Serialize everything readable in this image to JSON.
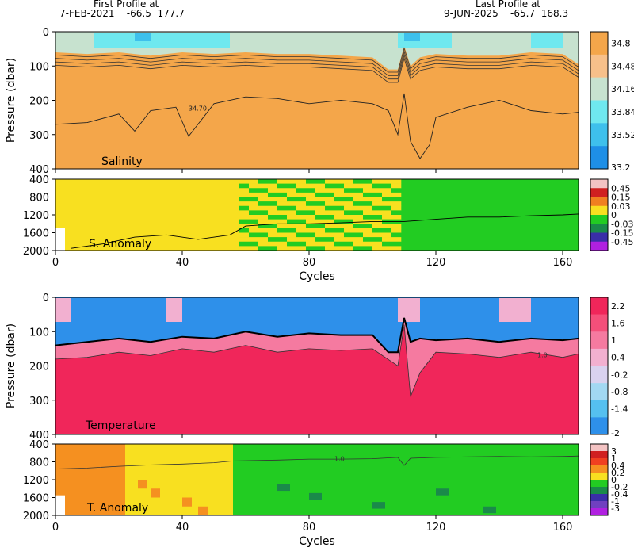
{
  "header": {
    "first_line1": "First Profile at",
    "first_line2": "7-FEB-2021    -66.5  177.7",
    "last_line1": "Last Profile at",
    "last_line2": "9-JUN-2025    -65.7  168.3"
  },
  "chart_data": [
    {
      "type": "heatmap",
      "id": "salinity",
      "title": "Salinity",
      "ylabel": "Pressure (dbar)",
      "xlabel": "",
      "xlim": [
        0,
        165
      ],
      "ylim": [
        400,
        0
      ],
      "xticks": [
        0,
        40,
        80,
        120,
        160
      ],
      "yticks": [
        0,
        100,
        200,
        300,
        400
      ],
      "colorbar": {
        "labels": [
          "34.8",
          "34.48",
          "34.16",
          "33.84",
          "33.52",
          "33.2"
        ],
        "colors": [
          "#f4a64a",
          "#f7c08a",
          "#c7e2cf",
          "#6fe8ef",
          "#3ec0ec",
          "#1e8fe6"
        ]
      },
      "contour_label": "34.70",
      "contour_34_70": {
        "x": [
          0,
          10,
          20,
          25,
          30,
          38,
          42,
          50,
          60,
          70,
          80,
          90,
          100,
          105,
          108,
          110,
          112,
          115,
          118,
          120,
          130,
          140,
          150,
          160,
          165
        ],
        "y": [
          270,
          265,
          240,
          290,
          230,
          220,
          305,
          210,
          190,
          195,
          210,
          200,
          210,
          230,
          300,
          180,
          320,
          370,
          330,
          250,
          220,
          200,
          230,
          240,
          235
        ]
      }
    },
    {
      "type": "heatmap",
      "id": "salinity_anomaly",
      "title": "S. Anomaly",
      "ylabel": "",
      "xlabel": "Cycles",
      "xlim": [
        0,
        165
      ],
      "ylim": [
        2000,
        400
      ],
      "xticks": [
        0,
        40,
        80,
        120,
        160
      ],
      "yticks": [
        400,
        800,
        1200,
        1600,
        2000
      ],
      "colorbar": {
        "labels": [
          "0.45",
          "0.15",
          "0.03",
          "0",
          "-0.03",
          "-0.15",
          "-0.45"
        ],
        "colors": [
          "#f3c3c3",
          "#d02020",
          "#f08020",
          "#f8e020",
          "#22cc22",
          "#1a8a4a",
          "#3a2ea8",
          "#b020e0"
        ]
      },
      "regions": [
        {
          "x0": 0,
          "x1": 58,
          "value": "0.03"
        },
        {
          "x0": 58,
          "x1": 108,
          "value": "mixed"
        },
        {
          "x0": 108,
          "x1": 165,
          "value": "0"
        }
      ],
      "contour": {
        "x": [
          5,
          15,
          25,
          35,
          45,
          55,
          60,
          70,
          80,
          90,
          100,
          110,
          120,
          130,
          140,
          150,
          160,
          165
        ],
        "y": [
          1950,
          1850,
          1700,
          1650,
          1750,
          1650,
          1450,
          1400,
          1400,
          1380,
          1350,
          1350,
          1300,
          1250,
          1250,
          1220,
          1200,
          1180
        ]
      }
    },
    {
      "type": "heatmap",
      "id": "temperature",
      "title": "Temperature",
      "ylabel": "Pressure (dbar)",
      "xlabel": "",
      "xlim": [
        0,
        165
      ],
      "ylim": [
        400,
        0
      ],
      "xticks": [
        0,
        40,
        80,
        120,
        160
      ],
      "yticks": [
        0,
        100,
        200,
        300,
        400
      ],
      "colorbar": {
        "labels": [
          "2.2",
          "1.6",
          "1",
          "0.4",
          "-0.2",
          "-0.8",
          "-1.4",
          "-2"
        ],
        "colors": [
          "#f0265a",
          "#f44f7a",
          "#f57aa0",
          "#f2b0d0",
          "#d9d2ef",
          "#a2d8f2",
          "#55c0f0",
          "#2e90ea"
        ]
      },
      "contour_label": "1.0",
      "zero_contour": {
        "x": [
          0,
          10,
          20,
          30,
          40,
          50,
          60,
          70,
          80,
          90,
          100,
          105,
          108,
          110,
          112,
          115,
          120,
          130,
          140,
          150,
          160,
          165
        ],
        "y": [
          140,
          130,
          120,
          130,
          115,
          120,
          100,
          115,
          105,
          110,
          110,
          160,
          160,
          60,
          130,
          120,
          125,
          120,
          130,
          120,
          125,
          120
        ]
      },
      "one_contour": {
        "x": [
          0,
          10,
          20,
          30,
          40,
          50,
          60,
          70,
          80,
          90,
          100,
          108,
          110,
          112,
          115,
          120,
          130,
          140,
          150,
          160,
          165
        ],
        "y": [
          180,
          175,
          160,
          170,
          150,
          160,
          140,
          160,
          150,
          155,
          150,
          200,
          80,
          290,
          220,
          160,
          165,
          175,
          160,
          175,
          165
        ]
      }
    },
    {
      "type": "heatmap",
      "id": "temperature_anomaly",
      "title": "T. Anomaly",
      "ylabel": "",
      "xlabel": "Cycles",
      "xlim": [
        0,
        165
      ],
      "ylim": [
        2000,
        400
      ],
      "xticks": [
        0,
        40,
        80,
        120,
        160
      ],
      "yticks": [
        400,
        800,
        1200,
        1600,
        2000
      ],
      "colorbar": {
        "labels": [
          "3",
          "1",
          "0.4",
          "0.2",
          "0",
          "-0.2",
          "-0.4",
          "-1",
          "-3"
        ],
        "colors": [
          "#f3c3c3",
          "#d02020",
          "#f04020",
          "#f59020",
          "#f8e020",
          "#22cc22",
          "#1a8a4a",
          "#3a2ea8",
          "#7040c0",
          "#b020e0"
        ]
      },
      "contour_label": "1.0",
      "regions": [
        {
          "x0": 0,
          "x1": 22,
          "value": "0.2"
        },
        {
          "x0": 22,
          "x1": 56,
          "value": "0"
        },
        {
          "x0": 56,
          "x1": 165,
          "value": "-0.2"
        }
      ],
      "contour": {
        "x": [
          0,
          10,
          20,
          30,
          40,
          50,
          56,
          70,
          80,
          90,
          100,
          108,
          110,
          112,
          120,
          130,
          140,
          150,
          160,
          165
        ],
        "y": [
          960,
          940,
          900,
          870,
          850,
          820,
          780,
          760,
          740,
          740,
          730,
          700,
          880,
          720,
          700,
          690,
          680,
          690,
          680,
          670
        ]
      }
    }
  ]
}
